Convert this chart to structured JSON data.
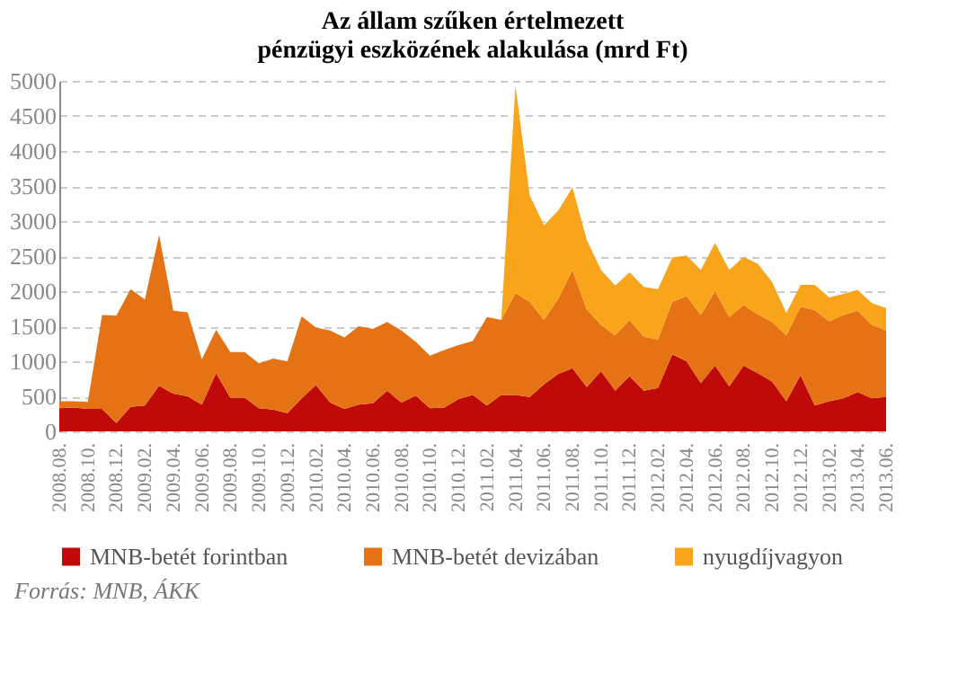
{
  "chart_data": {
    "type": "area",
    "stacked": true,
    "title": "Az állam szűken értelmezett\npénzügyi eszközének alakulása (mrd Ft)",
    "categories": [
      "2008.08.",
      null,
      "2008.10.",
      null,
      "2008.12.",
      null,
      "2009.02.",
      null,
      "2009.04.",
      null,
      "2009.06.",
      null,
      "2009.08.",
      null,
      "2009.10.",
      null,
      "2009.12.",
      null,
      "2010.02.",
      null,
      "2010.04.",
      null,
      "2010.06.",
      null,
      "2010.08.",
      null,
      "2010.10.",
      null,
      "2010.12.",
      null,
      "2011.02.",
      null,
      "2011.04.",
      null,
      "2011.06.",
      null,
      "2011.08.",
      null,
      "2011.10.",
      null,
      "2011.12.",
      null,
      "2012.02.",
      null,
      "2012.04.",
      null,
      "2012.06.",
      null,
      "2012.08.",
      null,
      "2012.10.",
      null,
      "2012.12.",
      null,
      "2013.02.",
      null,
      "2013.04.",
      null,
      "2013.06."
    ],
    "series": [
      {
        "name": "MNB-betét forintban",
        "color": "#c00a0a",
        "values": [
          330,
          340,
          320,
          320,
          120,
          350,
          370,
          650,
          540,
          500,
          380,
          830,
          480,
          480,
          330,
          310,
          260,
          470,
          660,
          410,
          320,
          380,
          400,
          580,
          410,
          510,
          330,
          340,
          460,
          520,
          370,
          520,
          520,
          490,
          670,
          820,
          900,
          630,
          860,
          580,
          790,
          580,
          620,
          1100,
          1000,
          690,
          940,
          640,
          940,
          830,
          710,
          430,
          800,
          370,
          430,
          470,
          560,
          470,
          490
        ]
      },
      {
        "name": "MNB-betét devizában",
        "color": "#e57316",
        "values": [
          100,
          90,
          100,
          1340,
          1530,
          1680,
          1510,
          2150,
          1180,
          1200,
          650,
          620,
          650,
          650,
          640,
          730,
          740,
          1170,
          820,
          1030,
          1020,
          1120,
          1060,
          980,
          1030,
          770,
          750,
          820,
          770,
          770,
          1260,
          1070,
          1450,
          1360,
          920,
          1070,
          1400,
          1110,
          660,
          790,
          800,
          770,
          690,
          750,
          930,
          970,
          1060,
          990,
          860,
          840,
          850,
          940,
          980,
          1360,
          1140,
          1190,
          1160,
          1050,
          950
        ]
      },
      {
        "name": "nyugdíjvagyon",
        "color": "#f8a51c",
        "values": [
          0,
          0,
          0,
          0,
          0,
          0,
          0,
          0,
          0,
          0,
          0,
          0,
          0,
          0,
          0,
          0,
          0,
          0,
          0,
          0,
          0,
          0,
          0,
          0,
          0,
          0,
          0,
          0,
          0,
          0,
          0,
          0,
          2960,
          1520,
          1350,
          1260,
          1180,
          990,
          780,
          710,
          680,
          710,
          720,
          630,
          580,
          640,
          690,
          670,
          690,
          720,
          570,
          320,
          310,
          360,
          340,
          300,
          300,
          310,
          320
        ]
      }
    ],
    "ylim": [
      0,
      5000
    ],
    "yticks": [
      0,
      500,
      1000,
      1500,
      2000,
      2500,
      3000,
      3500,
      4000,
      4500,
      5000
    ],
    "grid": "y",
    "legend": "bottom",
    "annotations": [
      "Forrás: MNB, ÁKK"
    ]
  }
}
